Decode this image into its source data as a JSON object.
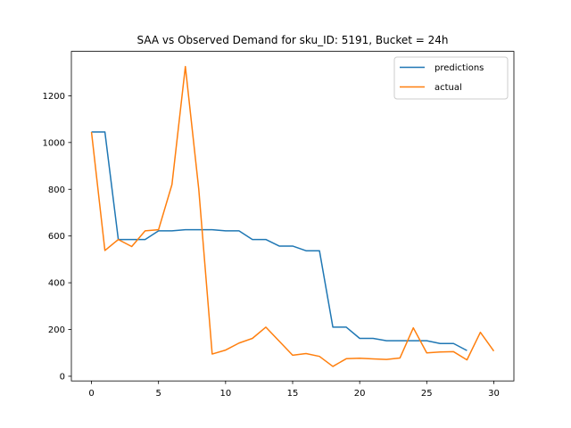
{
  "chart_data": {
    "type": "line",
    "title": "SAA vs Observed Demand for sku_ID: 5191, Bucket = 24h",
    "xlabel": "",
    "ylabel": "",
    "xlim": [
      -1.5,
      31.5
    ],
    "ylim": [
      -20,
      1390
    ],
    "xticks": [
      0,
      5,
      10,
      15,
      20,
      25,
      30
    ],
    "yticks": [
      0,
      200,
      400,
      600,
      800,
      1000,
      1200
    ],
    "grid": false,
    "legend_position": "upper right",
    "series": [
      {
        "name": "predictions",
        "color": "#1f77b4",
        "x": [
          0,
          1,
          2,
          3,
          4,
          5,
          6,
          7,
          8,
          9,
          10,
          11,
          12,
          13,
          14,
          15,
          16,
          17,
          18,
          19,
          20,
          21,
          22,
          23,
          24,
          25,
          26,
          27,
          28
        ],
        "y": [
          1045,
          1045,
          585,
          585,
          585,
          622,
          622,
          627,
          627,
          627,
          622,
          622,
          585,
          585,
          557,
          557,
          537,
          537,
          210,
          210,
          162,
          162,
          152,
          152,
          152,
          152,
          140,
          140,
          110
        ]
      },
      {
        "name": "actual",
        "color": "#ff7f0e",
        "x": [
          0,
          1,
          2,
          3,
          4,
          5,
          6,
          7,
          8,
          9,
          10,
          11,
          12,
          13,
          14,
          15,
          16,
          17,
          18,
          19,
          20,
          21,
          22,
          23,
          24,
          25,
          26,
          27,
          28,
          29,
          30
        ],
        "y": [
          1045,
          538,
          585,
          555,
          622,
          627,
          820,
          1325,
          800,
          95,
          112,
          142,
          162,
          210,
          150,
          90,
          97,
          85,
          42,
          75,
          77,
          74,
          72,
          78,
          207,
          100,
          104,
          105,
          70,
          188,
          108
        ]
      }
    ]
  }
}
